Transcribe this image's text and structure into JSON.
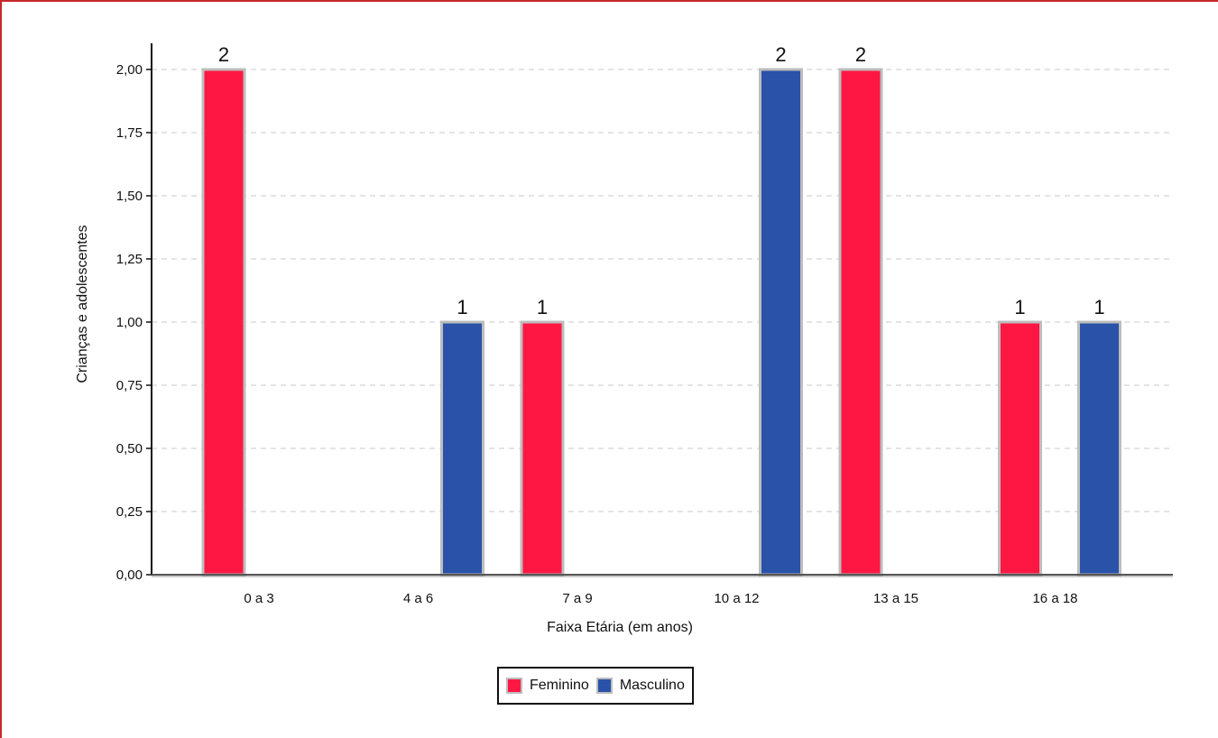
{
  "chart_data": {
    "type": "bar",
    "categories": [
      "0 a 3",
      "4 a 6",
      "7 a 9",
      "10 a 12",
      "13 a 15",
      "16 a 18"
    ],
    "series": [
      {
        "name": "Feminino",
        "color": "#ff1744",
        "values": [
          2,
          0,
          1,
          0,
          2,
          1
        ]
      },
      {
        "name": "Masculino",
        "color": "#2a52a8",
        "values": [
          0,
          1,
          0,
          2,
          0,
          1
        ]
      }
    ],
    "xlabel": "Faixa Etária (em anos)",
    "ylabel": "Crianças e adolescentes",
    "ylim": [
      0,
      2
    ],
    "yticks": [
      "0,00",
      "0,25",
      "0,50",
      "0,75",
      "1,00",
      "1,25",
      "1,50",
      "1,75",
      "2,00"
    ],
    "grid": true,
    "legend_position": "bottom-center"
  }
}
